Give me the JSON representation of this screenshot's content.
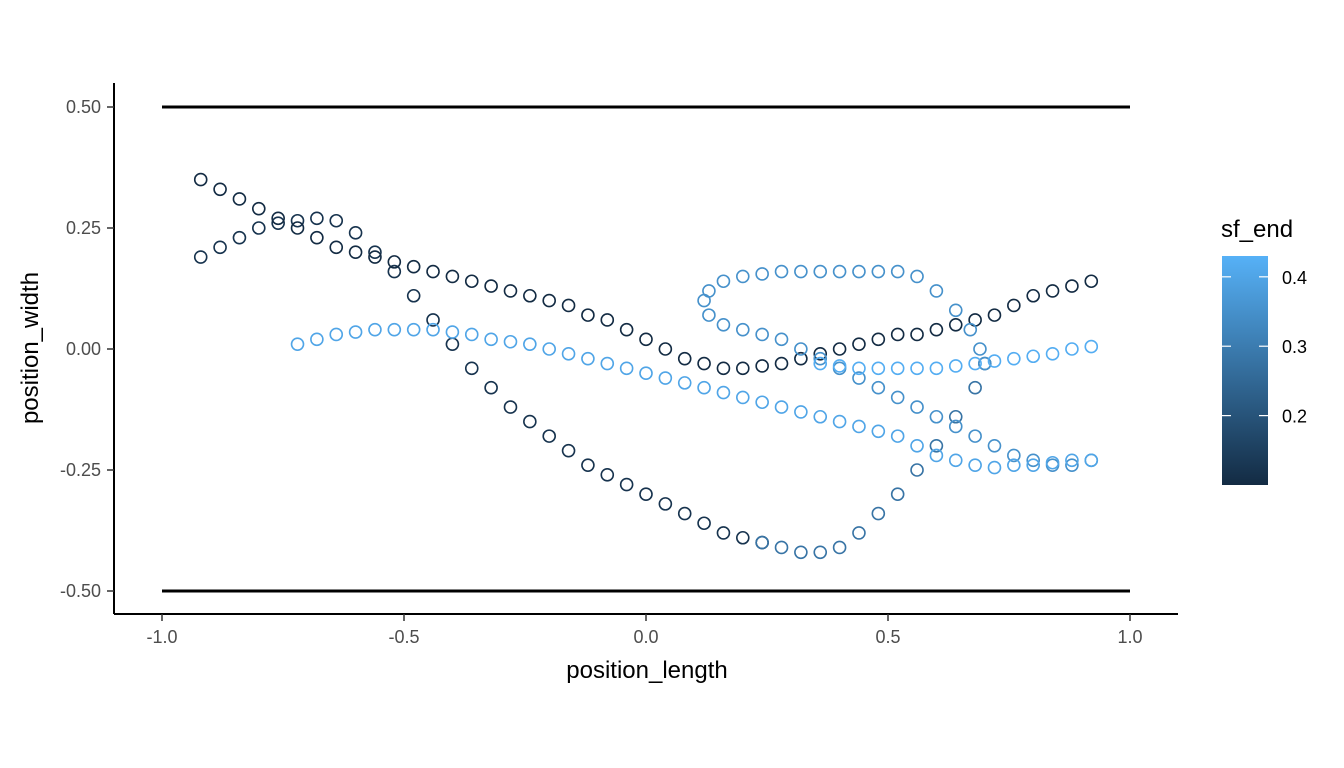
{
  "chart_data": {
    "type": "scatter",
    "title": "",
    "xlabel": "position_length",
    "ylabel": "position_width",
    "xlim": [
      -1.1,
      1.1
    ],
    "ylim": [
      -0.55,
      0.55
    ],
    "x_ticks": [
      -1.0,
      -0.5,
      0.0,
      0.5,
      1.0
    ],
    "x_tick_labels": [
      "-1.0",
      "-0.5",
      "0.0",
      "0.5",
      "1.0"
    ],
    "y_ticks": [
      0.5,
      0.25,
      0.0,
      -0.25,
      -0.5
    ],
    "y_tick_labels": [
      "0.50",
      "0.25",
      "0.00",
      "-0.25",
      "-0.50"
    ],
    "grid": false,
    "marker": "open-circle",
    "reference_lines": [
      {
        "y": 0.5,
        "x_from": -1.0,
        "x_to": 1.0,
        "color": "#000000"
      },
      {
        "y": -0.5,
        "x_from": -1.0,
        "x_to": 1.0,
        "color": "#000000"
      }
    ],
    "legend": {
      "title": "sf_end",
      "type": "colorbar",
      "placement": "right",
      "range": [
        0.1,
        0.43
      ],
      "breaks": [
        0.4,
        0.3,
        0.2
      ],
      "break_labels": [
        "0.4",
        "0.3",
        "0.2"
      ],
      "color_low": "#132B43",
      "color_high": "#56B1F7"
    },
    "series": [
      {
        "sf_end": 0.12,
        "points": [
          [
            -0.92,
            0.19
          ],
          [
            -0.88,
            0.21
          ],
          [
            -0.84,
            0.23
          ],
          [
            -0.8,
            0.25
          ],
          [
            -0.76,
            0.26
          ],
          [
            -0.72,
            0.265
          ],
          [
            -0.68,
            0.27
          ],
          [
            -0.64,
            0.265
          ],
          [
            -0.6,
            0.24
          ],
          [
            -0.56,
            0.2
          ],
          [
            -0.52,
            0.16
          ],
          [
            -0.48,
            0.11
          ],
          [
            -0.44,
            0.06
          ],
          [
            -0.4,
            0.01
          ],
          [
            -0.36,
            -0.04
          ],
          [
            -0.32,
            -0.08
          ],
          [
            -0.28,
            -0.12
          ],
          [
            -0.24,
            -0.15
          ],
          [
            -0.2,
            -0.18
          ],
          [
            -0.16,
            -0.21
          ],
          [
            -0.12,
            -0.24
          ],
          [
            -0.08,
            -0.26
          ],
          [
            -0.04,
            -0.28
          ],
          [
            0.0,
            -0.3
          ],
          [
            0.04,
            -0.32
          ],
          [
            0.08,
            -0.34
          ],
          [
            0.12,
            -0.36
          ],
          [
            0.16,
            -0.38
          ],
          [
            0.2,
            -0.39
          ],
          [
            0.24,
            -0.4
          ]
        ]
      },
      {
        "sf_end": 0.1,
        "points": [
          [
            -0.92,
            0.35
          ],
          [
            -0.88,
            0.33
          ],
          [
            -0.84,
            0.31
          ],
          [
            -0.8,
            0.29
          ],
          [
            -0.76,
            0.27
          ],
          [
            -0.72,
            0.25
          ],
          [
            -0.68,
            0.23
          ],
          [
            -0.64,
            0.21
          ],
          [
            -0.6,
            0.2
          ],
          [
            -0.56,
            0.19
          ],
          [
            -0.52,
            0.18
          ],
          [
            -0.48,
            0.17
          ],
          [
            -0.44,
            0.16
          ],
          [
            -0.4,
            0.15
          ],
          [
            -0.36,
            0.14
          ],
          [
            -0.32,
            0.13
          ],
          [
            -0.28,
            0.12
          ],
          [
            -0.24,
            0.11
          ],
          [
            -0.2,
            0.1
          ],
          [
            -0.16,
            0.09
          ],
          [
            -0.12,
            0.07
          ],
          [
            -0.08,
            0.06
          ],
          [
            -0.04,
            0.04
          ],
          [
            0.0,
            0.02
          ],
          [
            0.04,
            0.0
          ],
          [
            0.08,
            -0.02
          ],
          [
            0.12,
            -0.03
          ],
          [
            0.16,
            -0.04
          ],
          [
            0.2,
            -0.04
          ],
          [
            0.24,
            -0.035
          ],
          [
            0.28,
            -0.03
          ],
          [
            0.32,
            -0.02
          ],
          [
            0.36,
            -0.01
          ],
          [
            0.4,
            0.0
          ],
          [
            0.44,
            0.01
          ],
          [
            0.48,
            0.02
          ],
          [
            0.52,
            0.03
          ],
          [
            0.56,
            0.03
          ],
          [
            0.6,
            0.04
          ],
          [
            0.64,
            0.05
          ],
          [
            0.68,
            0.06
          ],
          [
            0.72,
            0.07
          ],
          [
            0.76,
            0.09
          ],
          [
            0.8,
            0.11
          ],
          [
            0.84,
            0.12
          ],
          [
            0.88,
            0.13
          ],
          [
            0.92,
            0.14
          ]
        ]
      },
      {
        "sf_end": 0.28,
        "points": [
          [
            0.24,
            -0.4
          ],
          [
            0.28,
            -0.41
          ],
          [
            0.32,
            -0.42
          ],
          [
            0.36,
            -0.42
          ],
          [
            0.4,
            -0.41
          ],
          [
            0.44,
            -0.38
          ],
          [
            0.48,
            -0.34
          ],
          [
            0.52,
            -0.3
          ],
          [
            0.56,
            -0.25
          ],
          [
            0.6,
            -0.2
          ],
          [
            0.64,
            -0.14
          ],
          [
            0.68,
            -0.08
          ],
          [
            0.7,
            -0.03
          ]
        ]
      },
      {
        "sf_end": 0.35,
        "points": [
          [
            0.7,
            -0.03
          ],
          [
            0.69,
            0.0
          ],
          [
            0.67,
            0.04
          ],
          [
            0.64,
            0.08
          ],
          [
            0.6,
            0.12
          ],
          [
            0.56,
            0.15
          ],
          [
            0.52,
            0.16
          ],
          [
            0.48,
            0.16
          ],
          [
            0.44,
            0.16
          ],
          [
            0.4,
            0.16
          ],
          [
            0.36,
            0.16
          ],
          [
            0.32,
            0.16
          ],
          [
            0.28,
            0.16
          ],
          [
            0.24,
            0.155
          ],
          [
            0.2,
            0.15
          ],
          [
            0.16,
            0.14
          ],
          [
            0.13,
            0.12
          ],
          [
            0.12,
            0.1
          ],
          [
            0.13,
            0.07
          ],
          [
            0.16,
            0.05
          ],
          [
            0.2,
            0.04
          ],
          [
            0.24,
            0.03
          ],
          [
            0.28,
            0.02
          ],
          [
            0.32,
            0.0
          ],
          [
            0.36,
            -0.02
          ],
          [
            0.4,
            -0.04
          ],
          [
            0.44,
            -0.06
          ],
          [
            0.48,
            -0.08
          ],
          [
            0.52,
            -0.1
          ],
          [
            0.56,
            -0.12
          ],
          [
            0.6,
            -0.14
          ],
          [
            0.64,
            -0.16
          ],
          [
            0.68,
            -0.18
          ],
          [
            0.72,
            -0.2
          ],
          [
            0.76,
            -0.22
          ],
          [
            0.8,
            -0.23
          ],
          [
            0.84,
            -0.24
          ],
          [
            0.88,
            -0.24
          ],
          [
            0.92,
            -0.23
          ]
        ]
      },
      {
        "sf_end": 0.4,
        "points": [
          [
            -0.72,
            0.01
          ],
          [
            -0.68,
            0.02
          ],
          [
            -0.64,
            0.03
          ],
          [
            -0.6,
            0.035
          ],
          [
            -0.56,
            0.04
          ],
          [
            -0.52,
            0.04
          ],
          [
            -0.48,
            0.04
          ],
          [
            -0.44,
            0.04
          ],
          [
            -0.4,
            0.035
          ],
          [
            -0.36,
            0.03
          ],
          [
            -0.32,
            0.02
          ],
          [
            -0.28,
            0.015
          ],
          [
            -0.24,
            0.01
          ],
          [
            -0.2,
            0.0
          ],
          [
            -0.16,
            -0.01
          ],
          [
            -0.12,
            -0.02
          ],
          [
            -0.08,
            -0.03
          ],
          [
            -0.04,
            -0.04
          ],
          [
            0.0,
            -0.05
          ],
          [
            0.04,
            -0.06
          ],
          [
            0.08,
            -0.07
          ],
          [
            0.12,
            -0.08
          ],
          [
            0.16,
            -0.09
          ],
          [
            0.2,
            -0.1
          ],
          [
            0.24,
            -0.11
          ],
          [
            0.28,
            -0.12
          ],
          [
            0.32,
            -0.13
          ],
          [
            0.36,
            -0.14
          ],
          [
            0.4,
            -0.15
          ],
          [
            0.44,
            -0.16
          ],
          [
            0.48,
            -0.17
          ],
          [
            0.52,
            -0.18
          ],
          [
            0.56,
            -0.2
          ],
          [
            0.6,
            -0.22
          ],
          [
            0.64,
            -0.23
          ],
          [
            0.68,
            -0.24
          ],
          [
            0.72,
            -0.245
          ],
          [
            0.76,
            -0.24
          ],
          [
            0.8,
            -0.24
          ],
          [
            0.84,
            -0.235
          ],
          [
            0.88,
            -0.23
          ],
          [
            0.92,
            -0.23
          ]
        ]
      },
      {
        "sf_end": 0.42,
        "points": [
          [
            0.36,
            -0.03
          ],
          [
            0.4,
            -0.035
          ],
          [
            0.44,
            -0.04
          ],
          [
            0.48,
            -0.04
          ],
          [
            0.52,
            -0.04
          ],
          [
            0.56,
            -0.04
          ],
          [
            0.6,
            -0.04
          ],
          [
            0.64,
            -0.035
          ],
          [
            0.68,
            -0.03
          ],
          [
            0.72,
            -0.025
          ],
          [
            0.76,
            -0.02
          ],
          [
            0.8,
            -0.015
          ],
          [
            0.84,
            -0.01
          ],
          [
            0.88,
            0.0
          ],
          [
            0.92,
            0.005
          ]
        ]
      }
    ]
  }
}
